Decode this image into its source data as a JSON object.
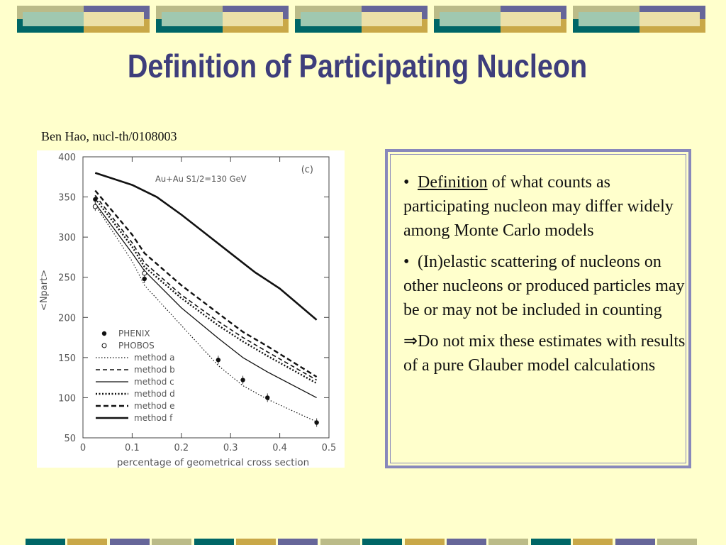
{
  "slide": {
    "title": "Definition of Participating Nucleon",
    "citation": "Ben Hao, nucl-th/0108003"
  },
  "bullets": [
    {
      "marker": "•",
      "underlined": "Definition",
      "rest": " of what counts as participating nucleon may differ widely among Monte Carlo models"
    },
    {
      "marker": "•",
      "underlined": "",
      "rest": "(In)elastic scattering of nucleons on other nucleons or produced particles may be or may not be included in counting"
    },
    {
      "marker": "⇒",
      "underlined": "",
      "rest": "Do not mix these estimates with results of a pure Glauber model calculations"
    }
  ],
  "colors": {
    "background": "#ffffcc",
    "title": "#3e3e7c",
    "box_border": "#8888bb",
    "banner_teal": "#006666",
    "banner_purple": "#666699",
    "banner_gold": "#c9a848",
    "banner_green": "#bbbb88",
    "banner_light_teal": "#a0c8b0",
    "banner_light_gold": "#ece0a8"
  },
  "chart_data": {
    "type": "line",
    "panel_label": "(c)",
    "annotation": "Au+Au   S1/2=130 GeV",
    "xlabel": "percentage of geometrical cross section",
    "ylabel": "<Npart>",
    "xlim": [
      0,
      0.5
    ],
    "ylim": [
      50,
      400
    ],
    "x_ticks": [
      "0",
      "0.1",
      "0.2",
      "0.3",
      "0.4",
      "0.5"
    ],
    "y_ticks": [
      "50",
      "100",
      "150",
      "200",
      "250",
      "300",
      "350",
      "400"
    ],
    "legend": [
      {
        "name": "PHENIX",
        "style": "filled-circle"
      },
      {
        "name": "PHOBOS",
        "style": "open-circle"
      },
      {
        "name": "method a",
        "style": "dotted"
      },
      {
        "name": "method b",
        "style": "dashed"
      },
      {
        "name": "method c",
        "style": "solid-thin"
      },
      {
        "name": "method d",
        "style": "dotted-thick"
      },
      {
        "name": "method e",
        "style": "dashed-thick"
      },
      {
        "name": "method f",
        "style": "solid-thick"
      }
    ],
    "series": [
      {
        "name": "method a",
        "style": "dotted",
        "x": [
          0.025,
          0.1,
          0.125,
          0.2,
          0.275,
          0.325,
          0.375,
          0.475
        ],
        "y": [
          340,
          270,
          240,
          190,
          140,
          115,
          98,
          70
        ]
      },
      {
        "name": "method b",
        "style": "dashed",
        "x": [
          0.025,
          0.1,
          0.125,
          0.2,
          0.275,
          0.325,
          0.375,
          0.475
        ],
        "y": [
          352,
          293,
          268,
          228,
          195,
          175,
          157,
          122
        ]
      },
      {
        "name": "method c",
        "style": "solid-thin",
        "x": [
          0.025,
          0.1,
          0.125,
          0.2,
          0.275,
          0.325,
          0.375,
          0.475
        ],
        "y": [
          342,
          280,
          258,
          212,
          174,
          150,
          132,
          100
        ]
      },
      {
        "name": "method d",
        "style": "dotted-thick",
        "x": [
          0.025,
          0.1,
          0.125,
          0.2,
          0.275,
          0.325,
          0.375,
          0.475
        ],
        "y": [
          348,
          288,
          263,
          224,
          190,
          170,
          152,
          118
        ]
      },
      {
        "name": "method e",
        "style": "dashed-thick",
        "x": [
          0.025,
          0.1,
          0.125,
          0.2,
          0.275,
          0.325,
          0.375,
          0.475
        ],
        "y": [
          358,
          303,
          280,
          240,
          205,
          182,
          164,
          126
        ]
      },
      {
        "name": "method f",
        "style": "solid-thick",
        "x": [
          0.025,
          0.1,
          0.15,
          0.2,
          0.25,
          0.3,
          0.35,
          0.4,
          0.475
        ],
        "y": [
          380,
          365,
          350,
          328,
          304,
          280,
          256,
          236,
          197
        ]
      }
    ],
    "points": [
      {
        "name": "PHENIX",
        "style": "filled-circle",
        "x": [
          0.025,
          0.125,
          0.275,
          0.325,
          0.375,
          0.475
        ],
        "y": [
          347,
          248,
          147,
          122,
          100,
          69
        ]
      },
      {
        "name": "PHOBOS",
        "style": "open-circle",
        "x": [
          0.025,
          0.125
        ],
        "y": [
          338,
          255
        ]
      }
    ]
  }
}
